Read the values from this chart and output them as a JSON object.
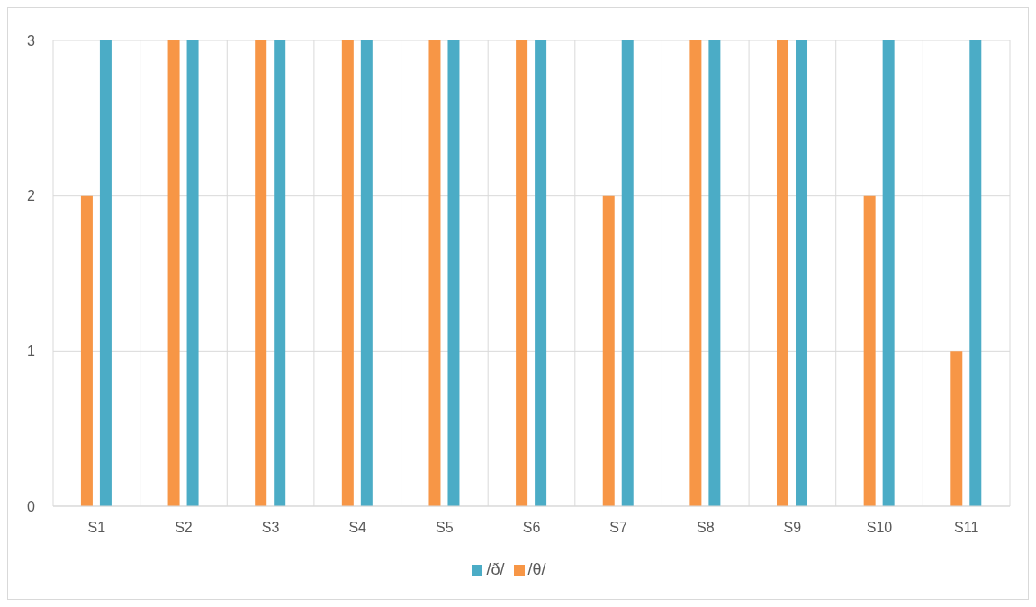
{
  "chart_data": {
    "type": "bar",
    "categories": [
      "S1",
      "S2",
      "S3",
      "S4",
      "S5",
      "S6",
      "S7",
      "S8",
      "S9",
      "S10",
      "S11"
    ],
    "series": [
      {
        "name": "/θ/",
        "color": "#f79646",
        "values": [
          2,
          3,
          3,
          3,
          3,
          3,
          2,
          3,
          3,
          2,
          1
        ]
      },
      {
        "name": "/ð/",
        "color": "#4bacc6",
        "values": [
          3,
          3,
          3,
          3,
          3,
          3,
          3,
          3,
          3,
          3,
          3
        ]
      }
    ],
    "ylim": [
      0,
      3
    ],
    "yticks": [
      0,
      1,
      2,
      3
    ],
    "grid": true,
    "legend": "bottom"
  }
}
